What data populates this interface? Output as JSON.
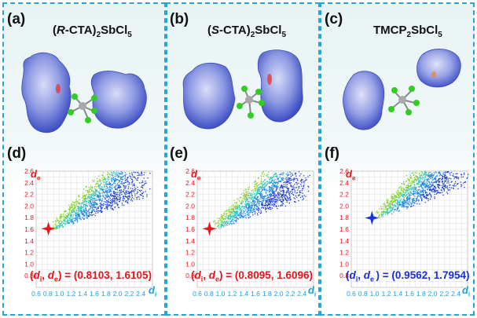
{
  "panels": [
    {
      "letter": "(a)",
      "compound": {
        "pre": "(",
        "ital": "R",
        "mid": "-CTA)",
        "sub1": "2",
        "body": "SbCl",
        "sub2": "5"
      }
    },
    {
      "letter": "(b)",
      "compound": {
        "pre": "(",
        "ital": "S",
        "mid": "-CTA)",
        "sub1": "2",
        "body": "SbCl",
        "sub2": "5"
      }
    },
    {
      "letter": "(c)",
      "compound": {
        "pre": "",
        "ital": "",
        "mid": "TMCP",
        "sub1": "2",
        "body": "SbCl",
        "sub2": "5"
      }
    }
  ],
  "plots": [
    {
      "letter": "(d)",
      "de_label": {
        "var": "d",
        "sub": "e"
      },
      "di_label": {
        "var": "d",
        "sub": "i"
      },
      "formula": {
        "open": "(",
        "v1": "d",
        "s1": "i",
        "comma": ", ",
        "v2": "d",
        "s2": "e",
        "close": ") = (0.8103, 1.6105)"
      },
      "marker": {
        "di": 0.8103,
        "de": 1.6105,
        "color": "#e8141c"
      },
      "formula_color": "#e8141c"
    },
    {
      "letter": "(e)",
      "de_label": {
        "var": "d",
        "sub": "e"
      },
      "di_label": {
        "var": "d",
        "sub": "i"
      },
      "formula": {
        "open": "(",
        "v1": "d",
        "s1": "i",
        "comma": ", ",
        "v2": "d",
        "s2": "e",
        "close": ") = (0.8095, 1.6096)"
      },
      "marker": {
        "di": 0.8095,
        "de": 1.6096,
        "color": "#e8141c"
      },
      "formula_color": "#e8141c"
    },
    {
      "letter": "(f)",
      "de_label": {
        "var": "d",
        "sub": "e"
      },
      "di_label": {
        "var": "d",
        "sub": "i"
      },
      "formula": {
        "open": "(",
        "v1": "d",
        "s1": "i",
        "comma": ", ",
        "v2": "d",
        "s2": "e ",
        "close": ") = (0.9562, 1.7954)"
      },
      "marker": {
        "di": 0.9562,
        "de": 1.7954,
        "color": "#1a2fd6"
      },
      "formula_color": "#1a2fd6"
    }
  ],
  "axes": {
    "x_ticks": [
      "0.6",
      "0.8",
      "1.0",
      "1.2",
      "1.4",
      "1.6",
      "1.8",
      "2.0",
      "2.2",
      "2.4"
    ],
    "y_ticks": [
      "0.8",
      "1.0",
      "1.2",
      "1.4",
      "1.6",
      "1.8",
      "2.0",
      "2.2",
      "2.4",
      "2.6"
    ],
    "x_tick_color": "#1aa0dc",
    "y_tick_color": "#e8141c",
    "range": [
      0.6,
      2.6
    ]
  },
  "colors": {
    "border": "#29a3d8",
    "surface": "#5c6fd6",
    "chlorine": "#33cc22",
    "antimony": "#9e9e9e"
  }
}
